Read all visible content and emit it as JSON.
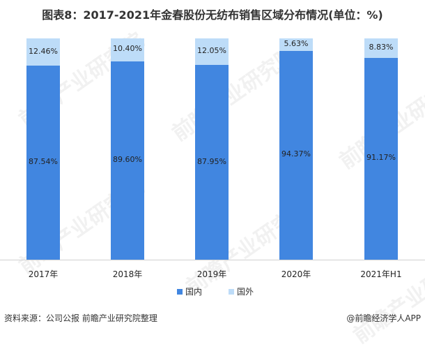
{
  "title": "图表8：2017-2021年金春股份无纺布销售区域分布情况(单位：%)",
  "colors": {
    "domestic": "#4186E0",
    "overseas": "#BDDCF8"
  },
  "chart_data": {
    "type": "bar",
    "stacked": true,
    "percent": true,
    "title": "图表8：2017-2021年金春股份无纺布销售区域分布情况(单位：%)",
    "categories": [
      "2017年",
      "2018年",
      "2019年",
      "2020年",
      "2021年H1"
    ],
    "series": [
      {
        "name": "国内",
        "values": [
          87.54,
          89.6,
          87.95,
          94.37,
          91.17
        ],
        "labels": [
          "87.54%",
          "89.60%",
          "87.95%",
          "94.37%",
          "91.17%"
        ]
      },
      {
        "name": "国外",
        "values": [
          12.46,
          10.4,
          12.05,
          5.63,
          8.83
        ],
        "labels": [
          "12.46%",
          "10.40%",
          "12.05%",
          "5.63%",
          "8.83%"
        ]
      }
    ],
    "xlabel": "",
    "ylabel": "",
    "ylim": [
      0,
      100
    ],
    "grid": false,
    "legend_position": "bottom"
  },
  "legend": [
    {
      "label": "国内"
    },
    {
      "label": "国外"
    }
  ],
  "footer": {
    "source": "资料来源：公司公报 前瞻产业研究院整理",
    "brand": "@前瞻经济学人APP"
  },
  "watermark": "前瞻产业研究院"
}
